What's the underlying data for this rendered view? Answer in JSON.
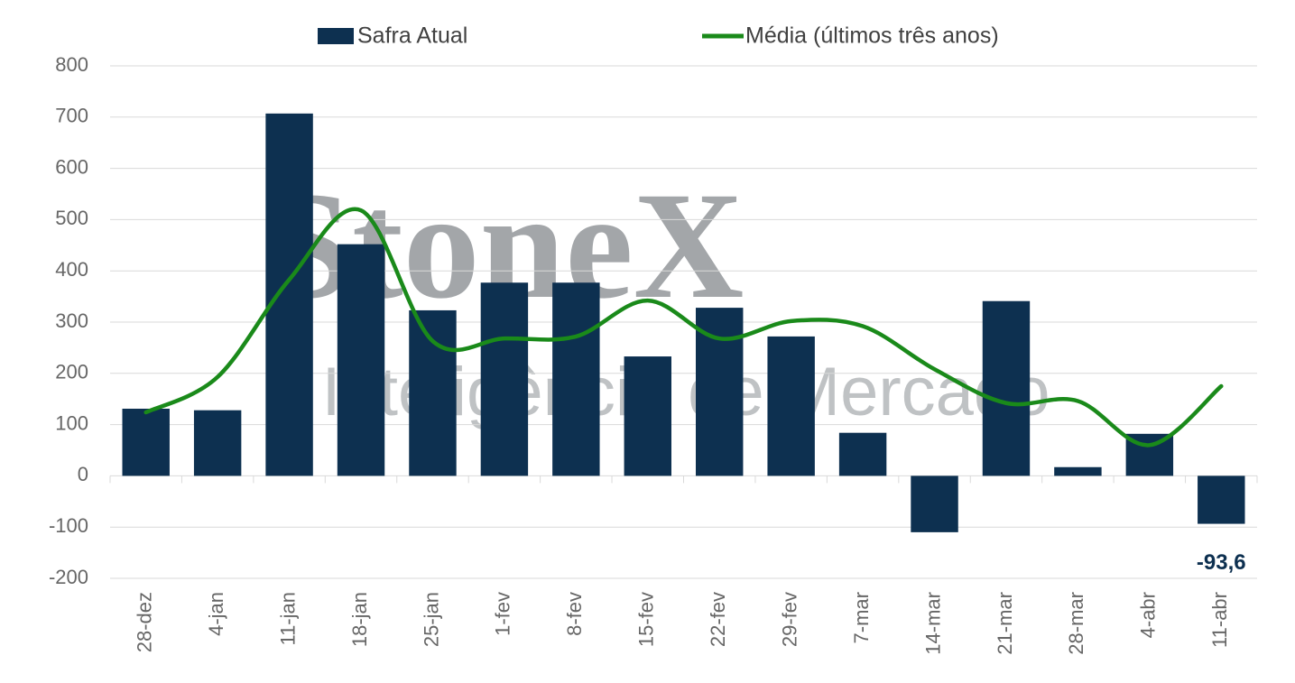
{
  "chart_data": {
    "type": "bar_line",
    "watermark": {
      "brand": "StoneX",
      "subtitle": "Inteligência de Mercado"
    },
    "categories": [
      "28-dez",
      "4-jan",
      "11-jan",
      "18-jan",
      "25-jan",
      "1-fev",
      "8-fev",
      "15-fev",
      "22-fev",
      "29-fev",
      "7-mar",
      "14-mar",
      "21-mar",
      "28-mar",
      "4-abr",
      "11-abr"
    ],
    "series": [
      {
        "name": "Safra Atual",
        "type": "bar",
        "color": "#0d3050",
        "values": [
          131,
          128,
          707,
          452,
          323,
          377,
          377,
          233,
          328,
          272,
          84,
          -110,
          341,
          17,
          82,
          -93.6
        ],
        "value_labels": [
          null,
          null,
          null,
          null,
          null,
          null,
          null,
          null,
          null,
          null,
          null,
          null,
          null,
          null,
          null,
          "-93,6"
        ]
      },
      {
        "name": "Média (últimos três anos)",
        "type": "line",
        "color": "#1a8a1a",
        "values": [
          124,
          193,
          383,
          518,
          263,
          268,
          272,
          342,
          268,
          302,
          292,
          208,
          142,
          146,
          60,
          175
        ]
      }
    ],
    "ylim": [
      -200,
      800
    ],
    "yticks": [
      -200,
      -100,
      0,
      100,
      200,
      300,
      400,
      500,
      600,
      700,
      800
    ],
    "grid": true
  }
}
